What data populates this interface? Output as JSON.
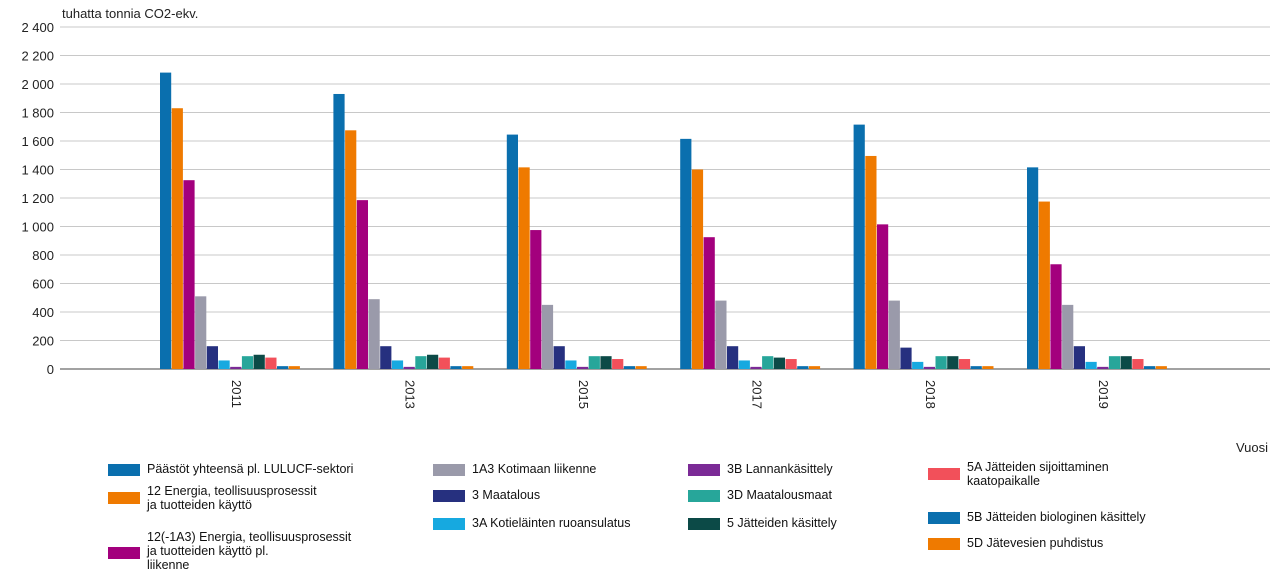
{
  "chart_data": {
    "type": "bar",
    "ylabel": "tuhatta tonnia CO2-ekv.",
    "xlabel": "Vuosi",
    "ylim": [
      0,
      2400
    ],
    "yticks": [
      0,
      200,
      400,
      600,
      800,
      1000,
      1200,
      1400,
      1600,
      1800,
      2000,
      2200,
      2400
    ],
    "ytick_labels": [
      "0",
      "200",
      "400",
      "600",
      "800",
      "1 000",
      "1 200",
      "1 400",
      "1 600",
      "1 800",
      "2 000",
      "2 200",
      "2 400"
    ],
    "grid": true,
    "legend_position": "bottom",
    "categories": [
      "2011",
      "2013",
      "2015",
      "2017",
      "2018",
      "2019"
    ],
    "series": [
      {
        "name": "Päästöt yhteensä pl. LULUCF-sektori",
        "color": "#0a6fae",
        "values": [
          2080,
          1930,
          1645,
          1615,
          1715,
          1415
        ]
      },
      {
        "name": "12 Energia, teollisuusprosessit\nja tuotteiden käyttö",
        "color": "#ef7a00",
        "values": [
          1830,
          1675,
          1415,
          1400,
          1495,
          1175
        ]
      },
      {
        "name": "12(-1A3) Energia, teollisuusprosessit\nja tuotteiden käyttö pl.\nliikenne",
        "color": "#a3007d",
        "values": [
          1325,
          1185,
          975,
          925,
          1015,
          735
        ]
      },
      {
        "name": "1A3 Kotimaan liikenne",
        "color": "#9a9aaa",
        "values": [
          510,
          490,
          450,
          480,
          480,
          450
        ]
      },
      {
        "name": "3 Maatalous",
        "color": "#26307f",
        "values": [
          160,
          160,
          160,
          160,
          150,
          160
        ]
      },
      {
        "name": "3A Kotieläinten ruoansulatus",
        "color": "#16a9e0",
        "values": [
          60,
          60,
          60,
          60,
          50,
          50
        ]
      },
      {
        "name": "3B Lannankäsittely",
        "color": "#7b2a96",
        "values": [
          15,
          15,
          15,
          15,
          15,
          15
        ]
      },
      {
        "name": "3D Maatalousmaat",
        "color": "#27a69a",
        "values": [
          90,
          90,
          90,
          90,
          90,
          90
        ]
      },
      {
        "name": "5 Jätteiden käsittely",
        "color": "#0c4a47",
        "values": [
          100,
          100,
          90,
          80,
          90,
          90
        ]
      },
      {
        "name": "5A Jätteiden sijoittaminen\nkaatopaikalle",
        "color": "#f2505a",
        "values": [
          80,
          80,
          70,
          70,
          70,
          70
        ]
      },
      {
        "name": "5B Jätteiden biologinen käsittely",
        "color": "#0a6fae",
        "values": [
          20,
          20,
          20,
          20,
          20,
          20
        ]
      },
      {
        "name": "5D Jätevesien puhdistus",
        "color": "#ef7a00",
        "values": [
          20,
          20,
          20,
          20,
          20,
          20
        ]
      }
    ]
  }
}
